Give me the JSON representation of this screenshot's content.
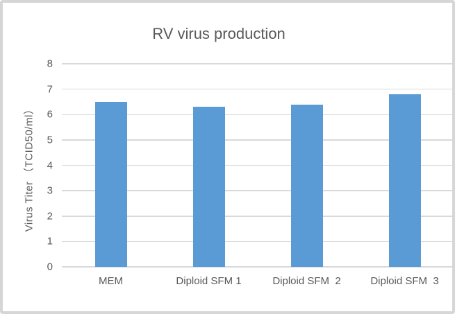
{
  "chart_data": {
    "type": "bar",
    "title": "RV virus production",
    "ylabel": "Virus Titer （TCID50/ml）",
    "xlabel": "",
    "categories": [
      "MEM",
      "Diploid SFM 1",
      "Diploid SFM  2",
      "Diploid SFM  3"
    ],
    "values": [
      6.5,
      6.3,
      6.4,
      6.8
    ],
    "ylim": [
      0,
      8
    ],
    "yticks": [
      0,
      1,
      2,
      3,
      4,
      5,
      6,
      7,
      8
    ],
    "grid": "horizontal",
    "legend": "none",
    "colors": {
      "bar": "#5b9bd5",
      "gridline": "#d9d9d9",
      "axis_line": "#d9d9d9",
      "text": "#595959",
      "frame_border": "#d6d6d6",
      "background": "#ffffff"
    }
  }
}
